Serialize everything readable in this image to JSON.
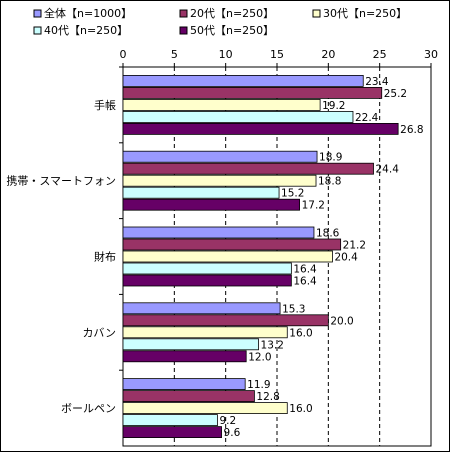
{
  "chart_data": {
    "type": "bar",
    "orientation": "horizontal",
    "categories": [
      "手帳",
      "携帯・スマートフォン",
      "財布",
      "カバン",
      "ボールペン"
    ],
    "series": [
      {
        "name": "全体【n=1000】",
        "color": "#9999ff",
        "values": [
          23.4,
          18.9,
          18.6,
          15.3,
          11.9
        ]
      },
      {
        "name": "20代【n=250】",
        "color": "#993366",
        "values": [
          25.2,
          24.4,
          21.2,
          20.0,
          12.8
        ]
      },
      {
        "name": "30代【n=250】",
        "color": "#ffffcc",
        "values": [
          19.2,
          18.8,
          20.4,
          16.0,
          16.0
        ]
      },
      {
        "name": "40代【n=250】",
        "color": "#ccffff",
        "values": [
          22.4,
          15.2,
          16.4,
          13.2,
          9.2
        ]
      },
      {
        "name": "50代【n=250】",
        "color": "#660066",
        "values": [
          26.8,
          17.2,
          16.4,
          12.0,
          9.6
        ]
      }
    ],
    "value_labels": [
      [
        "23.4",
        "18.9",
        "18.6",
        "15.3",
        "11.9"
      ],
      [
        "25.2",
        "24.4",
        "21.2",
        "20.0",
        "12.8"
      ],
      [
        "19.2",
        "18.8",
        "20.4",
        "16.0",
        "16.0"
      ],
      [
        "22.4",
        "15.2",
        "16.4",
        "13.2",
        "9.2"
      ],
      [
        "26.8",
        "17.2",
        "16.4",
        "12.0",
        "9.6"
      ]
    ],
    "xlim": [
      0,
      30
    ],
    "xticks": [
      0,
      5,
      10,
      15,
      20,
      25,
      30
    ],
    "xtick_labels": [
      "0",
      "5",
      "10",
      "15",
      "20",
      "25",
      "30"
    ],
    "grid": "vertical dashed",
    "legend_position": "top"
  }
}
